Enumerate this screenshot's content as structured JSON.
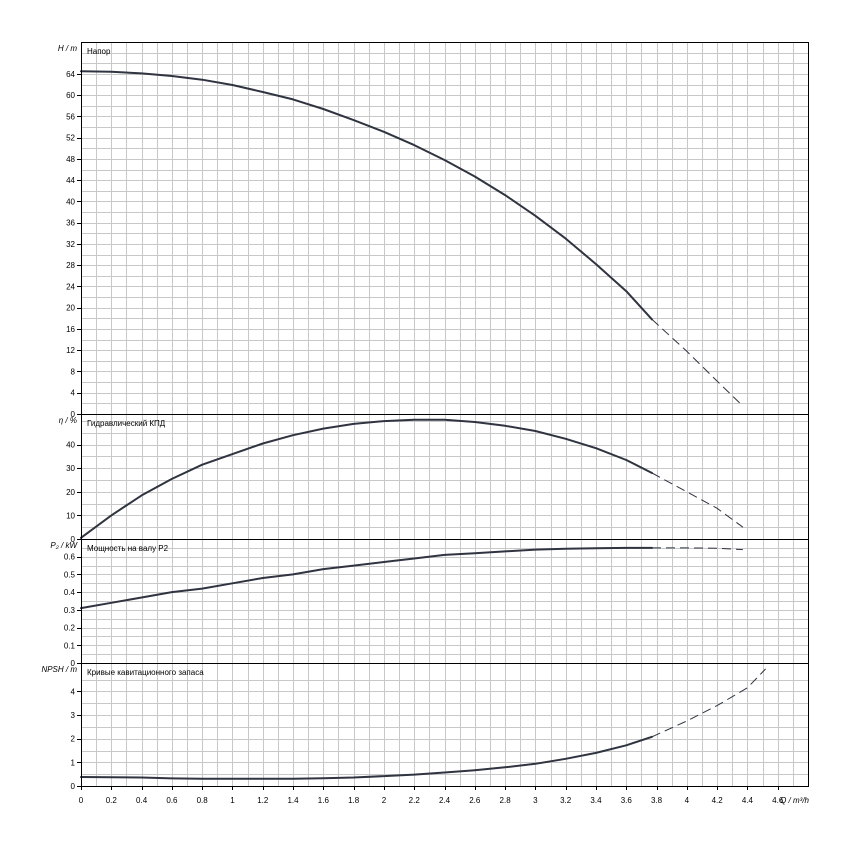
{
  "chart_data": {
    "type": "line",
    "x_axis": {
      "label_symbol": "Q",
      "label_unit": "m³/h",
      "range": [
        0,
        4.8
      ],
      "tick_step": 0.1,
      "ticks": [
        "0",
        "0.2",
        "0.4",
        "0.6",
        "0.8",
        "1",
        "1.2",
        "1.4",
        "1.6",
        "1.8",
        "2",
        "2.2",
        "2.4",
        "2.6",
        "2.8",
        "3",
        "3.2",
        "3.4",
        "3.6",
        "3.8",
        "4",
        "4.2",
        "4.4",
        "4.6"
      ]
    },
    "panels": [
      {
        "id": "head",
        "title": "Напор",
        "ylabel_symbol": "H",
        "ylabel_unit": "m",
        "ylim": [
          0,
          70
        ],
        "grid_step": 2,
        "ticks": [
          "0",
          "4",
          "8",
          "12",
          "16",
          "20",
          "24",
          "28",
          "32",
          "36",
          "40",
          "44",
          "48",
          "52",
          "56",
          "60",
          "64"
        ],
        "solid": [
          [
            0,
            64.5
          ],
          [
            0.2,
            64.4
          ],
          [
            0.4,
            64.1
          ],
          [
            0.6,
            63.6
          ],
          [
            0.8,
            62.9
          ],
          [
            1.0,
            61.9
          ],
          [
            1.2,
            60.6
          ],
          [
            1.4,
            59.2
          ],
          [
            1.6,
            57.4
          ],
          [
            1.8,
            55.3
          ],
          [
            2.0,
            53.1
          ],
          [
            2.2,
            50.6
          ],
          [
            2.4,
            47.8
          ],
          [
            2.6,
            44.7
          ],
          [
            2.8,
            41.2
          ],
          [
            3.0,
            37.3
          ],
          [
            3.2,
            33.0
          ],
          [
            3.4,
            28.2
          ],
          [
            3.6,
            23.1
          ],
          [
            3.77,
            17.8
          ]
        ],
        "dashed": [
          [
            3.77,
            17.8
          ],
          [
            4.0,
            11.8
          ],
          [
            4.2,
            6.2
          ],
          [
            4.37,
            1.5
          ]
        ]
      },
      {
        "id": "efficiency",
        "title": "Гидравлический КПД",
        "ylabel_symbol": "η",
        "ylabel_unit": "%",
        "ylim": [
          0,
          53
        ],
        "grid_step": 5,
        "ticks": [
          "0",
          "10",
          "20",
          "30",
          "40"
        ],
        "solid": [
          [
            0,
            0.5
          ],
          [
            0.2,
            10
          ],
          [
            0.4,
            18.5
          ],
          [
            0.6,
            25.5
          ],
          [
            0.8,
            31.5
          ],
          [
            1.0,
            36
          ],
          [
            1.2,
            40.5
          ],
          [
            1.4,
            44
          ],
          [
            1.6,
            46.8
          ],
          [
            1.8,
            48.8
          ],
          [
            2.0,
            50
          ],
          [
            2.2,
            50.6
          ],
          [
            2.4,
            50.6
          ],
          [
            2.6,
            49.6
          ],
          [
            2.8,
            48
          ],
          [
            3.0,
            45.8
          ],
          [
            3.2,
            42.5
          ],
          [
            3.4,
            38.5
          ],
          [
            3.6,
            33.5
          ],
          [
            3.77,
            28
          ]
        ],
        "dashed": [
          [
            3.77,
            28
          ],
          [
            4.0,
            20
          ],
          [
            4.2,
            13
          ],
          [
            4.37,
            5
          ]
        ]
      },
      {
        "id": "power",
        "title": "Мощность на валу P2",
        "ylabel_symbol": "P₂",
        "ylabel_unit": "kW",
        "ylim": [
          0,
          0.7
        ],
        "grid_step": 0.05,
        "ticks": [
          "0",
          "0.1",
          "0.2",
          "0.3",
          "0.4",
          "0.5",
          "0.6"
        ],
        "solid": [
          [
            0,
            0.31
          ],
          [
            0.2,
            0.34
          ],
          [
            0.4,
            0.37
          ],
          [
            0.6,
            0.4
          ],
          [
            0.8,
            0.42
          ],
          [
            1.0,
            0.45
          ],
          [
            1.2,
            0.48
          ],
          [
            1.4,
            0.5
          ],
          [
            1.6,
            0.53
          ],
          [
            1.8,
            0.55
          ],
          [
            2.0,
            0.57
          ],
          [
            2.2,
            0.59
          ],
          [
            2.4,
            0.61
          ],
          [
            2.6,
            0.62
          ],
          [
            2.8,
            0.63
          ],
          [
            3.0,
            0.64
          ],
          [
            3.2,
            0.645
          ],
          [
            3.4,
            0.648
          ],
          [
            3.6,
            0.65
          ],
          [
            3.77,
            0.65
          ]
        ],
        "dashed": [
          [
            3.77,
            0.65
          ],
          [
            4.0,
            0.65
          ],
          [
            4.2,
            0.648
          ],
          [
            4.37,
            0.64
          ]
        ]
      },
      {
        "id": "npsh",
        "title": "Кривые кавитационного запаса",
        "ylabel_symbol": "NPSH",
        "ylabel_unit": "m",
        "ylim": [
          0,
          5.2
        ],
        "grid_step": 0.5,
        "ticks": [
          "0",
          "1",
          "2",
          "3",
          "4"
        ],
        "solid": [
          [
            0,
            0.38
          ],
          [
            0.2,
            0.37
          ],
          [
            0.4,
            0.36
          ],
          [
            0.6,
            0.32
          ],
          [
            0.8,
            0.31
          ],
          [
            1.0,
            0.31
          ],
          [
            1.2,
            0.31
          ],
          [
            1.4,
            0.31
          ],
          [
            1.6,
            0.33
          ],
          [
            1.8,
            0.36
          ],
          [
            2.0,
            0.42
          ],
          [
            2.2,
            0.48
          ],
          [
            2.4,
            0.57
          ],
          [
            2.6,
            0.67
          ],
          [
            2.8,
            0.79
          ],
          [
            3.0,
            0.94
          ],
          [
            3.2,
            1.15
          ],
          [
            3.4,
            1.4
          ],
          [
            3.6,
            1.72
          ],
          [
            3.77,
            2.08
          ]
        ],
        "dashed": [
          [
            3.77,
            2.08
          ],
          [
            4.0,
            2.75
          ],
          [
            4.2,
            3.4
          ],
          [
            4.4,
            4.15
          ],
          [
            4.52,
            4.95
          ]
        ]
      }
    ]
  }
}
